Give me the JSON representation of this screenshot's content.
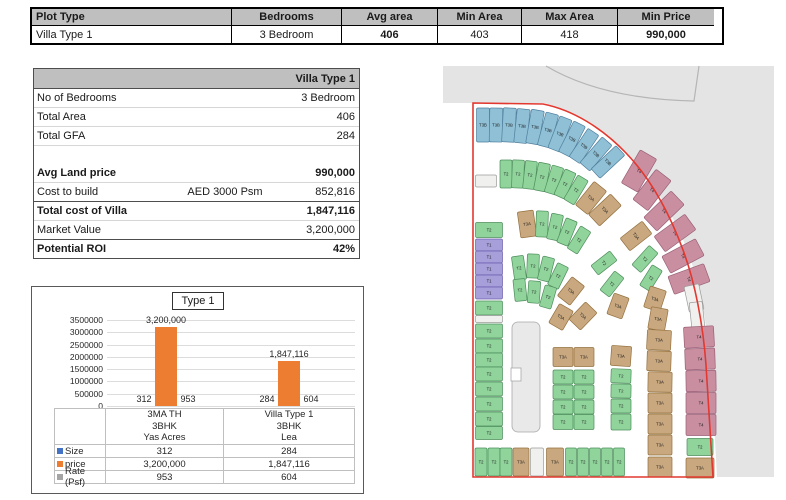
{
  "top_table": {
    "headers": [
      "Plot Type",
      "Bedrooms",
      "Avg area",
      "Min Area",
      "Max Area",
      "Min Price"
    ],
    "row": [
      "Villa Type 1",
      "3 Bedroom",
      "406",
      "403",
      "418",
      "990,000"
    ],
    "bold_cols": [
      2,
      5
    ]
  },
  "detail_table": {
    "header_value": "Villa Type 1",
    "rows": [
      {
        "label": "No of Bedrooms",
        "mid": "",
        "value": "3 Bedroom"
      },
      {
        "label": "Total Area",
        "mid": "",
        "value": "406"
      },
      {
        "label": "Total GFA",
        "mid": "",
        "value": "284"
      },
      {
        "label": "",
        "mid": "",
        "value": "",
        "blank": true
      },
      {
        "label": "Avg Land price",
        "mid": "",
        "value": "990,000",
        "bold": true
      },
      {
        "label": "Cost to build",
        "mid": "AED 3000 Psm",
        "value": "852,816"
      },
      {
        "label": "Total cost of Villa",
        "mid": "",
        "value": "1,847,116",
        "bold": true,
        "top": true
      },
      {
        "label": "Market Value",
        "mid": "",
        "value": "3,200,000"
      },
      {
        "label": "Potential ROI",
        "mid": "",
        "value": "42%",
        "bold": true,
        "top": true
      }
    ]
  },
  "chart_data": {
    "type": "bar",
    "title": "Type 1",
    "categories": [
      [
        "3MA TH",
        "3BHK",
        "Yas Acres"
      ],
      [
        "Villa Type 1",
        "3BHK",
        "Lea"
      ]
    ],
    "series": [
      {
        "name": "Size",
        "color": "#4472C4",
        "values": [
          312,
          284
        ],
        "labels": [
          "312",
          "284"
        ]
      },
      {
        "name": "price",
        "color": "#ED7D31",
        "values": [
          3200000,
          1847116
        ],
        "labels": [
          "3,200,000",
          "1,847,116"
        ]
      },
      {
        "name": "Rate (Psf)",
        "color": "#A5A5A5",
        "values": [
          953,
          604
        ],
        "labels": [
          "953",
          "604"
        ]
      }
    ],
    "ylim": [
      0,
      3500000
    ],
    "yticks": [
      "0",
      "500000",
      "1000000",
      "1500000",
      "2000000",
      "2500000",
      "3000000",
      "3500000"
    ],
    "grid": true,
    "legend_position": "table-left"
  },
  "map": {
    "background": "#e4e4e4",
    "road_line": "#b5b5b5",
    "boundary_color": "#e2382f",
    "building_fill": "#e9e9e9",
    "building_stroke": "#a8a8a8",
    "types": {
      "t1": {
        "fill": "#a79fd9",
        "stroke": "#6b5fae",
        "label": "T1"
      },
      "t2": {
        "fill": "#90d49c",
        "stroke": "#4e8d5c",
        "label": "T2"
      },
      "t3a": {
        "fill": "#c9a87f",
        "stroke": "#94713f",
        "label": "T3A"
      },
      "t3b": {
        "fill": "#8fc0d6",
        "stroke": "#4f7f9e",
        "label": "T3B"
      },
      "t4": {
        "fill": "#c98fa0",
        "stroke": "#9a5f77",
        "label": "T4"
      },
      "e": {
        "fill": "#f0f0ee",
        "stroke": "#9a9a9a",
        "label": ""
      }
    },
    "plots": [
      [
        "t3b",
        483,
        125,
        13,
        34,
        0
      ],
      [
        "t3b",
        496,
        125,
        13,
        34,
        1
      ],
      [
        "t3b",
        509,
        125,
        13,
        34,
        3
      ],
      [
        "t3b",
        522,
        126,
        13,
        34,
        6
      ],
      [
        "t3b",
        535,
        127,
        13,
        34,
        10
      ],
      [
        "t3b",
        548,
        130,
        13,
        34,
        15
      ],
      [
        "t3b",
        560,
        134,
        13,
        34,
        21
      ],
      [
        "t3b",
        572,
        139,
        13,
        34,
        27
      ],
      [
        "t3b",
        584,
        146,
        13,
        34,
        34
      ],
      [
        "t3b",
        596,
        154,
        13,
        34,
        41
      ],
      [
        "t3b",
        608,
        162,
        13,
        34,
        47
      ],
      [
        "t2",
        506,
        174,
        12,
        28,
        0
      ],
      [
        "t2",
        518,
        174,
        12,
        28,
        2
      ],
      [
        "t2",
        530,
        175,
        12,
        28,
        6
      ],
      [
        "t2",
        542,
        177,
        12,
        28,
        11
      ],
      [
        "t2",
        554,
        180,
        12,
        28,
        17
      ],
      [
        "t2",
        565,
        184,
        12,
        28,
        24
      ],
      [
        "t2",
        576,
        190,
        12,
        28,
        31
      ],
      [
        "t3a",
        591,
        198,
        16,
        30,
        39
      ],
      [
        "t3a",
        605,
        210,
        16,
        30,
        47
      ],
      [
        "t4",
        639,
        171,
        19,
        38,
        30
      ],
      [
        "t4",
        652,
        190,
        19,
        38,
        38
      ],
      [
        "t4",
        664,
        211,
        19,
        38,
        46
      ],
      [
        "t4",
        675,
        233,
        19,
        38,
        54
      ],
      [
        "t4",
        683,
        256,
        19,
        38,
        62
      ],
      [
        "t4",
        689,
        279,
        19,
        38,
        70
      ],
      [
        "e",
        694,
        298,
        26,
        15,
        78
      ],
      [
        "e",
        697,
        315,
        26,
        13,
        84
      ],
      [
        "t4",
        699,
        337,
        30,
        21,
        -3
      ],
      [
        "t4",
        700,
        359,
        30,
        21,
        -2
      ],
      [
        "t4",
        701,
        381,
        30,
        21,
        -1
      ],
      [
        "t4",
        701,
        403,
        30,
        21,
        0
      ],
      [
        "t4",
        701,
        425,
        30,
        21,
        0
      ],
      [
        "t2",
        700,
        447,
        26,
        17,
        0
      ],
      [
        "t3a",
        700,
        468,
        28,
        20,
        0
      ],
      [
        "e",
        486,
        181,
        21,
        12,
        0
      ],
      [
        "t2",
        489,
        230,
        27,
        15,
        0
      ],
      [
        "t1",
        489,
        245,
        27,
        12,
        0
      ],
      [
        "t1",
        489,
        257,
        27,
        12,
        0
      ],
      [
        "t1",
        489,
        269,
        27,
        12,
        0
      ],
      [
        "t1",
        489,
        281,
        27,
        12,
        0
      ],
      [
        "t1",
        489,
        293,
        27,
        12,
        0
      ],
      [
        "t2",
        489,
        308,
        27,
        14,
        0
      ],
      [
        "e",
        489,
        319,
        27,
        7,
        0
      ],
      [
        "t2",
        489,
        331,
        27,
        14,
        0
      ],
      [
        "t2",
        489,
        346,
        27,
        14,
        0
      ],
      [
        "t2",
        489,
        360,
        27,
        14,
        0
      ],
      [
        "t2",
        489,
        374,
        27,
        14,
        0
      ],
      [
        "t2",
        489,
        389,
        27,
        14,
        0
      ],
      [
        "t2",
        489,
        404,
        27,
        14,
        0
      ],
      [
        "t2",
        489,
        419,
        27,
        14,
        0
      ],
      [
        "t2",
        489,
        433,
        27,
        13,
        0
      ],
      [
        "t3a",
        527,
        224,
        16,
        26,
        -8
      ],
      [
        "t2",
        542,
        224,
        12,
        26,
        2
      ],
      [
        "t2",
        555,
        227,
        12,
        26,
        12
      ],
      [
        "t2",
        567,
        232,
        12,
        26,
        22
      ],
      [
        "t2",
        579,
        240,
        12,
        26,
        32
      ],
      [
        "t2",
        519,
        268,
        12,
        24,
        -8
      ],
      [
        "t2",
        533,
        266,
        12,
        24,
        2
      ],
      [
        "t2",
        546,
        269,
        12,
        24,
        14
      ],
      [
        "t2",
        558,
        276,
        12,
        24,
        26
      ],
      [
        "t2",
        520,
        290,
        12,
        22,
        -6
      ],
      [
        "t2",
        534,
        292,
        12,
        22,
        4
      ],
      [
        "t2",
        548,
        297,
        12,
        22,
        16
      ],
      [
        "t3a",
        571,
        291,
        16,
        24,
        38
      ],
      [
        "t3a",
        561,
        317,
        16,
        22,
        30
      ],
      [
        "t3a",
        583,
        316,
        16,
        24,
        44
      ],
      [
        "t2",
        604,
        263,
        12,
        24,
        52
      ],
      [
        "t2",
        612,
        284,
        12,
        24,
        38
      ],
      [
        "t3a",
        618,
        306,
        16,
        22,
        20
      ],
      [
        "t3a",
        636,
        236,
        16,
        28,
        52
      ],
      [
        "t2",
        645,
        259,
        12,
        26,
        42
      ],
      [
        "t2",
        651,
        278,
        12,
        24,
        32
      ],
      [
        "t3a",
        655,
        299,
        17,
        22,
        18
      ],
      [
        "t3a",
        658,
        319,
        17,
        22,
        10
      ],
      [
        "t3a",
        621,
        356,
        20,
        20,
        4
      ],
      [
        "t2",
        621,
        376,
        20,
        14,
        2
      ],
      [
        "t2",
        621,
        391,
        20,
        14,
        1
      ],
      [
        "t2",
        621,
        406,
        20,
        14,
        0
      ],
      [
        "t2",
        621,
        422,
        20,
        16,
        0
      ],
      [
        "t3a",
        659,
        340,
        24,
        20,
        3
      ],
      [
        "t3a",
        659,
        361,
        24,
        20,
        2
      ],
      [
        "t3a",
        660,
        382,
        24,
        20,
        1
      ],
      [
        "t3a",
        660,
        403,
        24,
        20,
        0
      ],
      [
        "t3a",
        660,
        424,
        24,
        20,
        0
      ],
      [
        "t3a",
        660,
        445,
        24,
        20,
        0
      ],
      [
        "t3a",
        660,
        467,
        24,
        20,
        0
      ],
      [
        "t3a",
        563,
        357,
        20,
        19,
        0
      ],
      [
        "t3a",
        584,
        357,
        20,
        19,
        0
      ],
      [
        "t2",
        563,
        377,
        20,
        14,
        0
      ],
      [
        "t2",
        584,
        377,
        20,
        14,
        0
      ],
      [
        "t2",
        563,
        392,
        20,
        14,
        0
      ],
      [
        "t2",
        584,
        392,
        20,
        14,
        0
      ],
      [
        "t2",
        563,
        407,
        20,
        14,
        0
      ],
      [
        "t2",
        584,
        407,
        20,
        14,
        0
      ],
      [
        "t2",
        563,
        422,
        20,
        15,
        0
      ],
      [
        "t2",
        584,
        422,
        20,
        15,
        0
      ],
      [
        "t2",
        481,
        462,
        12,
        28,
        0
      ],
      [
        "t2",
        494,
        462,
        12,
        28,
        0
      ],
      [
        "t2",
        506,
        462,
        12,
        28,
        0
      ],
      [
        "t3a",
        521,
        462,
        16,
        28,
        0
      ],
      [
        "e",
        537,
        462,
        13,
        28,
        0
      ],
      [
        "t3a",
        555,
        462,
        17,
        28,
        0
      ],
      [
        "t2",
        571,
        462,
        11,
        28,
        0
      ],
      [
        "t2",
        583,
        462,
        11,
        28,
        0
      ],
      [
        "t2",
        595,
        462,
        11,
        28,
        0
      ],
      [
        "t2",
        607,
        462,
        11,
        28,
        0
      ],
      [
        "t2",
        619,
        462,
        11,
        28,
        0
      ]
    ]
  }
}
